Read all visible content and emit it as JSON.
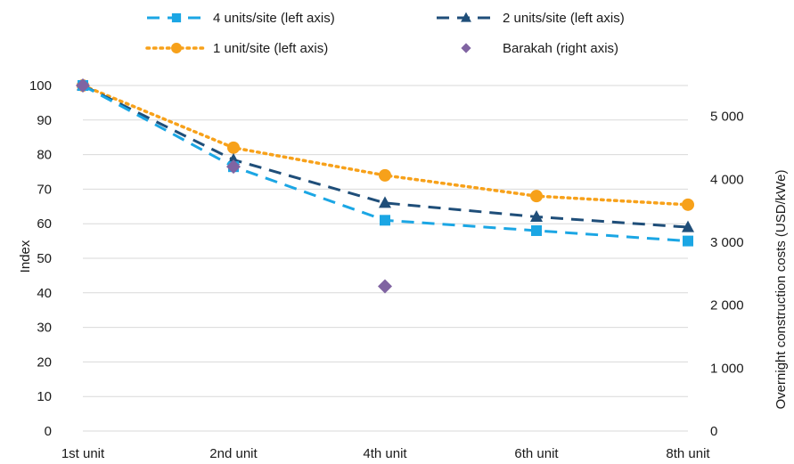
{
  "chart_data": {
    "type": "line",
    "categories": [
      "1st unit",
      "2nd unit",
      "4th unit",
      "6th unit",
      "8th unit"
    ],
    "series": [
      {
        "name": "4 units/site (left axis)",
        "axis": "left",
        "color": "#1ba6e4",
        "line_style": "dashed",
        "marker": "square",
        "values": [
          100,
          76.5,
          61,
          58,
          55
        ]
      },
      {
        "name": "2 units/site (left axis)",
        "axis": "left",
        "color": "#1f4e79",
        "line_style": "dashed",
        "marker": "triangle",
        "values": [
          100,
          78.5,
          66,
          62,
          59
        ]
      },
      {
        "name": "1 unit/site (left axis)",
        "axis": "left",
        "color": "#f7a11a",
        "line_style": "dotted",
        "marker": "circle",
        "values": [
          100,
          82,
          74,
          68,
          65.5
        ]
      },
      {
        "name": "Barakah (right axis)",
        "axis": "right",
        "color": "#8064a2",
        "line_style": "none",
        "marker": "diamond",
        "values": [
          5490,
          4200,
          2300,
          null,
          null
        ]
      }
    ],
    "y_left": {
      "label": "Index",
      "ylim": [
        0,
        100
      ],
      "ticks": [
        0,
        10,
        20,
        30,
        40,
        50,
        60,
        70,
        80,
        90,
        100
      ],
      "tick_labels": [
        "0",
        "10",
        "20",
        "30",
        "40",
        "50",
        "60",
        "70",
        "80",
        "90",
        "100"
      ]
    },
    "y_right": {
      "label": "Overnight construction costs (USD/kWe)",
      "ylim": [
        0,
        5490
      ],
      "ticks": [
        0,
        1000,
        2000,
        3000,
        4000,
        5000
      ],
      "tick_labels": [
        "0",
        "1 000",
        "2 000",
        "3 000",
        "4 000",
        "5 000"
      ]
    },
    "grid": "horizontal",
    "legend_position": "top",
    "gridline_color": "#d9d9d9"
  }
}
